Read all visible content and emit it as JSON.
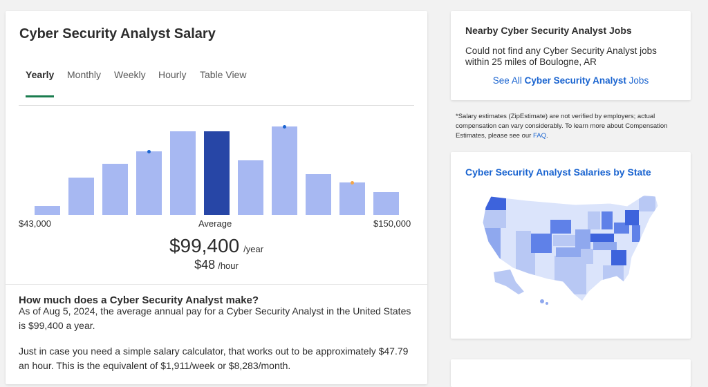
{
  "main": {
    "title": "Cyber Security Analyst Salary",
    "tabs": [
      "Yearly",
      "Monthly",
      "Weekly",
      "Hourly",
      "Table View"
    ],
    "active_tab": "Yearly",
    "histogram": {
      "min_label": "$43,000",
      "avg_label": "Average",
      "max_label": "$150,000",
      "relative_heights": [
        0.11,
        0.45,
        0.61,
        0.76,
        1.0,
        1.0,
        0.65,
        1.06,
        0.49,
        0.39,
        0.27
      ],
      "average_bar_index": 5,
      "colors": {
        "bar": "#a7b8f2",
        "average": "#2746a6",
        "dot_blue": "#1a64d0",
        "dot_orange": "#f2a54a"
      }
    },
    "salary": {
      "amount": "$99,400",
      "unit": "/year"
    },
    "hourly": {
      "amount": "$48",
      "unit": "/hour"
    },
    "section_heading": "How much does a Cyber Security Analyst make?",
    "paragraph1": "As of Aug 5, 2024, the average annual pay for a Cyber Security Analyst in the United States is $99,400 a year.",
    "paragraph2": "Just in case you need a simple salary calculator, that works out to be approximately $47.79 an hour. This is the equivalent of $1,911/week or $8,283/month."
  },
  "sidebar": {
    "jobs": {
      "title": "Nearby Cyber Security Analyst Jobs",
      "text": "Could not find any Cyber Security Analyst jobs within 25 miles of Boulogne, AR",
      "see_all_prefix": "See All",
      "see_all_bold": "Cyber Security Analyst",
      "see_all_suffix": "Jobs"
    },
    "disclaimer": {
      "text": "*Salary estimates (ZipEstimate) are not verified by employers; actual compensation can vary considerably. To learn more about Compensation Estimates, please see our",
      "link": "FAQ",
      "end": "."
    },
    "state_map": {
      "title": "Cyber Security Analyst Salaries by State",
      "colors": [
        "#dbe4fb",
        "#b8c8f4",
        "#8fa8ee",
        "#5f81e8",
        "#3d63dc"
      ]
    }
  }
}
